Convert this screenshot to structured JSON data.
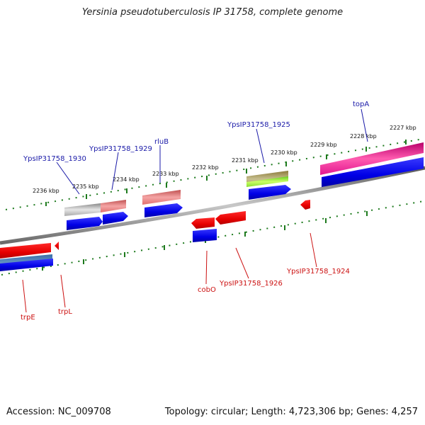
{
  "title": "Yersinia pseudotuberculosis IP 31758, complete genome",
  "footer": {
    "accession": "Accession: NC_009708",
    "stats": "Topology: circular; Length: 4,723,306 bp; Genes: 4,257"
  },
  "colors": {
    "ruler": "#1d7a1d",
    "backbone": "#8c8c8c",
    "forward_label": "#1a1aa8",
    "reverse_label": "#cc1111"
  },
  "kbp_ticks": [
    "2227 kbp",
    "2228 kbp",
    "2229 kbp",
    "2230 kbp",
    "2231 kbp",
    "2232 kbp",
    "2233 kbp",
    "2234 kbp",
    "2235 kbp",
    "2236 kbp"
  ],
  "forward_labels": [
    "topA",
    "YpsIP31758_1925",
    "rluB",
    "YpsIP31758_1929",
    "YpsIP31758_1930"
  ],
  "reverse_labels": [
    "YpsIP31758_1924",
    "YpsIP31758_1926",
    "cobO",
    "trpL",
    "trpE"
  ]
}
